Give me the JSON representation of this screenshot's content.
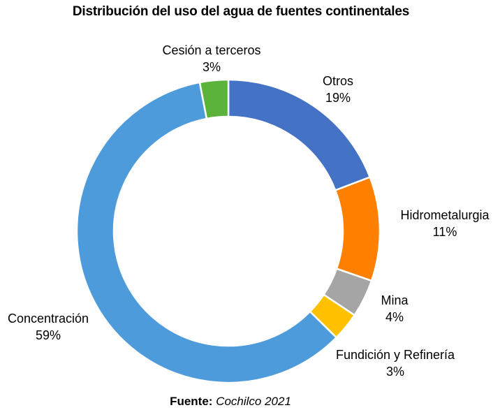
{
  "chart_data": {
    "type": "pie",
    "title": "Distribución del uso del agua de fuentes continentales",
    "slices": [
      {
        "label": "Otros",
        "value": 19,
        "value_label": "19%",
        "color": "#4472C4"
      },
      {
        "label": "Hidrometalurgia",
        "value": 11,
        "value_label": "11%",
        "color": "#FF7F00"
      },
      {
        "label": "Mina",
        "value": 4,
        "value_label": "4%",
        "color": "#A5A5A5"
      },
      {
        "label": "Fundición y Refinería",
        "value": 3,
        "value_label": "3%",
        "color": "#FFC000"
      },
      {
        "label": "Concentración",
        "value": 59,
        "value_label": "59%",
        "color": "#4E9BDC"
      },
      {
        "label": "Cesión a terceros",
        "value": 3,
        "value_label": "3%",
        "color": "#5BB33A"
      }
    ],
    "donut": true,
    "legend": "none",
    "data_labels": "outside"
  },
  "source": {
    "prefix": "Fuente:",
    "value": "Cochilco 2021"
  }
}
